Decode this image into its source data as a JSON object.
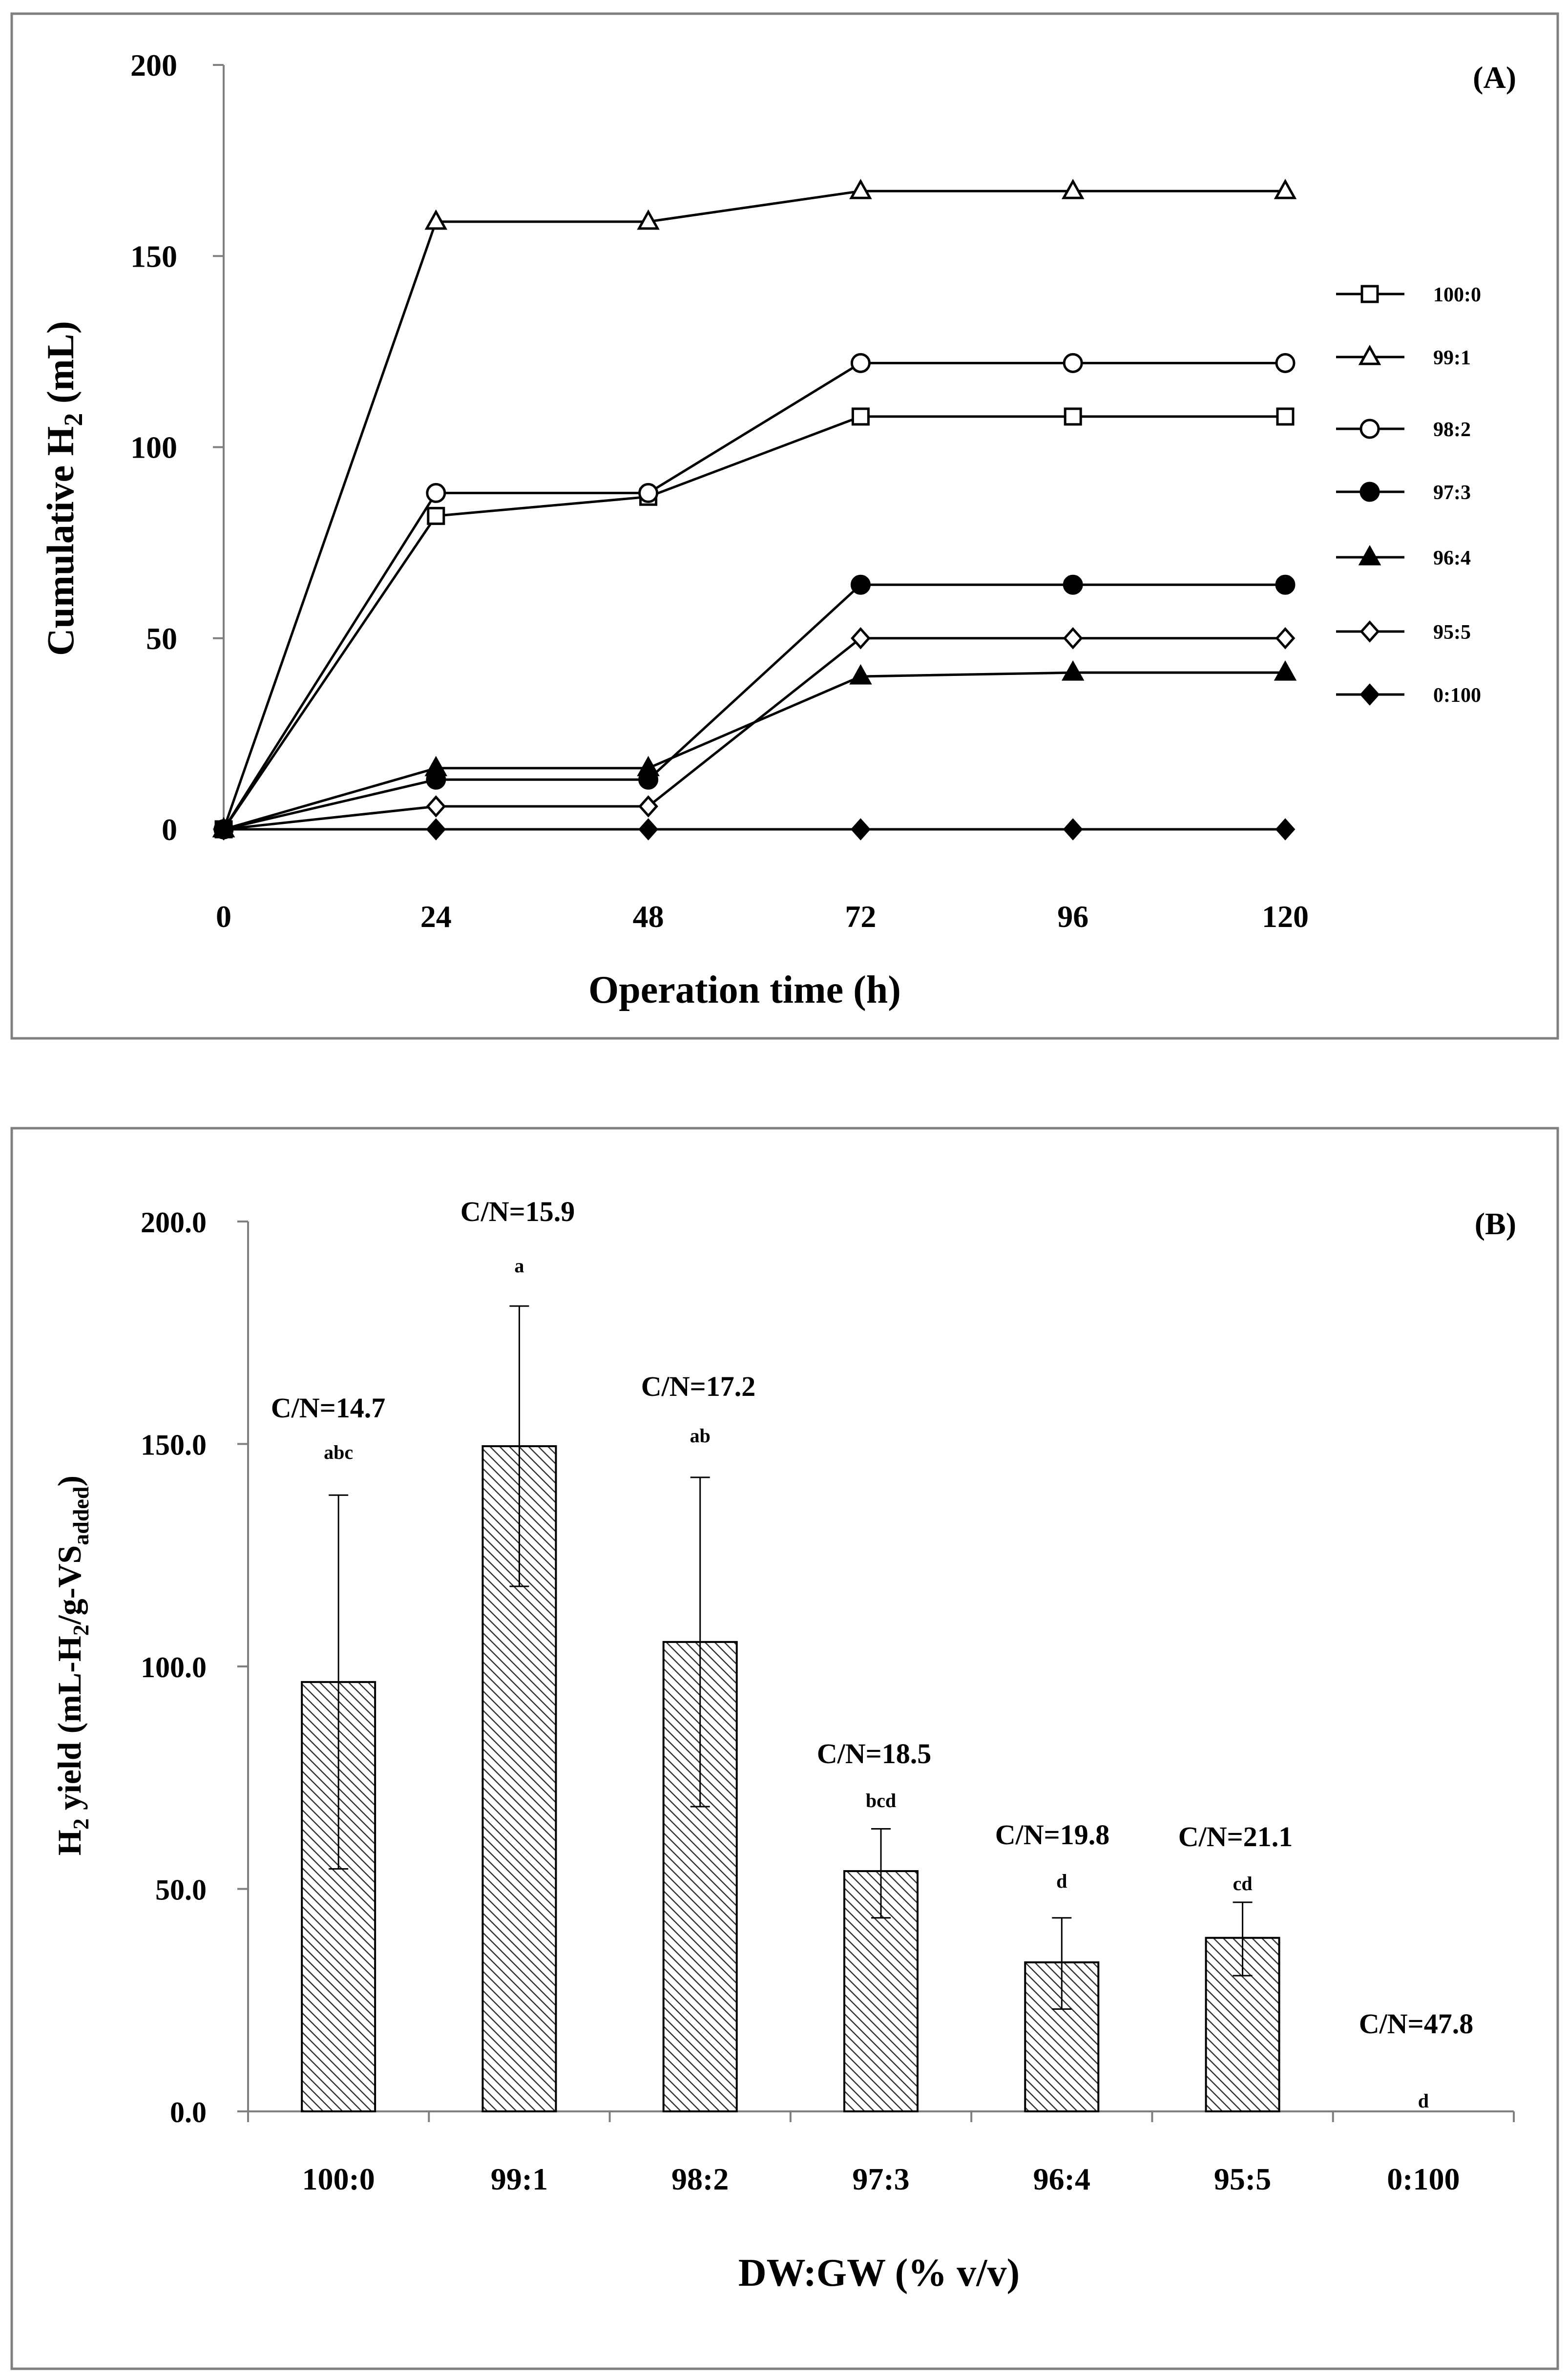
{
  "chart_data": [
    {
      "type": "line",
      "panel_label": "(A)",
      "xlabel": "Operation time (h)",
      "ylabel": {
        "main": "Cumulative H",
        "sub": "2",
        "unit": " (mL)"
      },
      "x": [
        0,
        24,
        48,
        72,
        96,
        120
      ],
      "x_ticks": [
        "0",
        "24",
        "48",
        "72",
        "96",
        "120"
      ],
      "xlim": [
        0,
        120
      ],
      "ylim": [
        0,
        200
      ],
      "y_ticks": [
        "0",
        "50",
        "100",
        "150",
        "200"
      ],
      "legend_position": "right",
      "series": [
        {
          "name": "100:0",
          "marker": "square-open",
          "values": [
            0,
            82,
            87,
            108,
            108,
            108
          ]
        },
        {
          "name": "99:1",
          "marker": "triangle-open",
          "values": [
            0,
            159,
            159,
            167,
            167,
            167
          ]
        },
        {
          "name": "98:2",
          "marker": "circle-open",
          "values": [
            0,
            88,
            88,
            122,
            122,
            122
          ]
        },
        {
          "name": "97:3",
          "marker": "circle-filled",
          "values": [
            0,
            13,
            13,
            64,
            64,
            64
          ]
        },
        {
          "name": "96:4",
          "marker": "triangle-filled",
          "values": [
            0,
            16,
            16,
            40,
            41,
            41
          ]
        },
        {
          "name": "95:5",
          "marker": "diamond-open",
          "values": [
            0,
            6,
            6,
            50,
            50,
            50
          ]
        },
        {
          "name": "0:100",
          "marker": "diamond-filled",
          "values": [
            0,
            0,
            0,
            0,
            0,
            0
          ]
        }
      ]
    },
    {
      "type": "bar",
      "panel_label": "(B)",
      "xlabel": "DW:GW (% v/v)",
      "ylabel": {
        "main": "H",
        "sub1": "2",
        "mid": " yield (mL-H",
        "sub2": "2",
        "mid2": "/g-VS",
        "sub3": "added",
        "end": ")"
      },
      "categories": [
        "100:0",
        "99:1",
        "98:2",
        "97:3",
        "96:4",
        "95:5",
        "0:100"
      ],
      "values": [
        96.5,
        149.5,
        105.5,
        54.0,
        33.5,
        39.0,
        0.0
      ],
      "error_upper": [
        138.5,
        181.0,
        142.5,
        63.5,
        43.5,
        47.0,
        0.0
      ],
      "error_lower": [
        54.5,
        118.0,
        68.5,
        43.5,
        23.0,
        30.5,
        0.0
      ],
      "cn_labels": [
        "C/N=14.7",
        "C/N=15.9",
        "C/N=17.2",
        "C/N=18.5",
        "C/N=19.8",
        "C/N=21.1",
        "C/N=47.8"
      ],
      "letters": [
        "abc",
        "a",
        "ab",
        "bcd",
        "d",
        "cd",
        "d"
      ],
      "ylim": [
        0,
        200
      ],
      "y_ticks": [
        "0.0",
        "50.0",
        "100.0",
        "150.0",
        "200.0"
      ]
    }
  ]
}
